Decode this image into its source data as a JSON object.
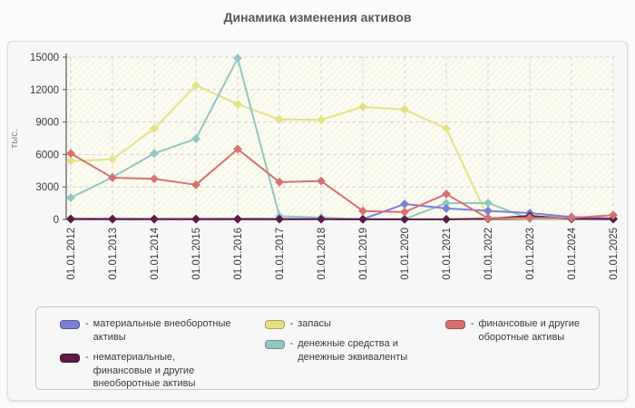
{
  "title": "Динамика изменения активов",
  "chart_data": {
    "type": "line",
    "title": "Динамика изменения активов",
    "ylabel": "тыс.",
    "ylim": [
      0,
      15000
    ],
    "yticks": [
      0,
      3000,
      6000,
      9000,
      12000,
      15000
    ],
    "grid": true,
    "legend_position": "bottom",
    "categories": [
      "01.01.2012",
      "01.01.2013",
      "01.01.2014",
      "01.01.2015",
      "01.01.2016",
      "01.01.2017",
      "01.01.2018",
      "01.01.2019",
      "01.01.2020",
      "01.01.2021",
      "01.01.2022",
      "01.01.2023",
      "01.01.2024",
      "01.01.2025"
    ],
    "series": [
      {
        "name": "материальные внеоборотные активы",
        "color": "#7b80d6",
        "values": [
          60,
          60,
          50,
          50,
          60,
          50,
          40,
          30,
          1420,
          1020,
          790,
          590,
          230,
          90
        ]
      },
      {
        "name": "нематериальные, финансовые и другие внеоборотные активы",
        "color": "#5c1c44",
        "values": [
          30,
          20,
          20,
          20,
          20,
          20,
          20,
          10,
          10,
          10,
          60,
          320,
          60,
          30
        ]
      },
      {
        "name": "запасы",
        "color": "#e5e088",
        "values": [
          5400,
          5550,
          8400,
          12400,
          10650,
          9250,
          9200,
          10400,
          10150,
          8400,
          150,
          50,
          30,
          80
        ]
      },
      {
        "name": "денежные средства и денежные эквиваленты",
        "color": "#92c7c1",
        "values": [
          2000,
          3900,
          6100,
          7450,
          14900,
          300,
          170,
          30,
          30,
          1500,
          1520,
          50,
          40,
          90
        ]
      },
      {
        "name": "финансовые и другие оборотные активы",
        "color": "#d97070",
        "values": [
          6100,
          3850,
          3750,
          3200,
          6500,
          3450,
          3550,
          780,
          680,
          2350,
          100,
          150,
          140,
          400
        ]
      }
    ]
  },
  "legend": {
    "prefix": "-",
    "columns": [
      [
        {
          "series": 0,
          "label": "материальные внеоборотные\nактивы"
        },
        {
          "series": 1,
          "label": "нематериальные,\nфинансовые и другие\nвнеоборотные активы"
        }
      ],
      [
        {
          "series": 2,
          "label": "запасы"
        },
        {
          "series": 3,
          "label": "денежные средства и\nденежные эквиваленты"
        }
      ],
      [
        {
          "series": 4,
          "label": "финансовые и другие\nоборотные активы"
        }
      ]
    ]
  }
}
